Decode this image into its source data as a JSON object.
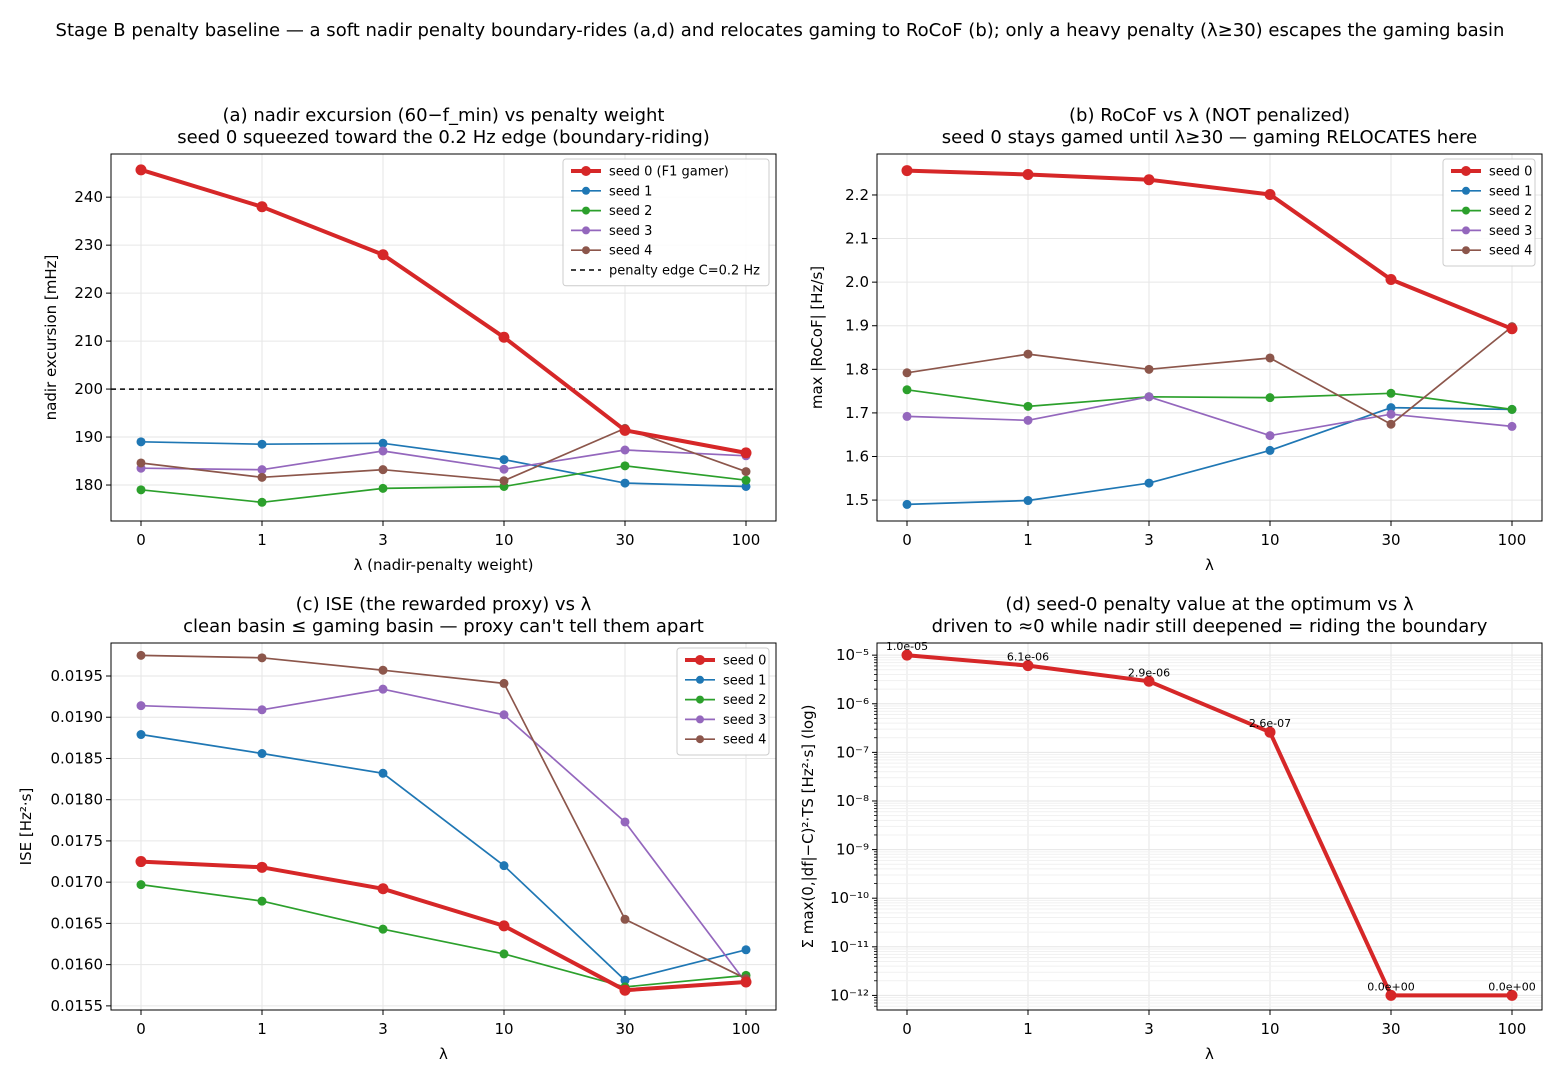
{
  "suptitle": "Stage B penalty baseline — a soft nadir penalty boundary-rides (a,d) and relocates gaming to RoCoF (b); only a heavy penalty (λ≥30) escapes the gaming basin",
  "colors": {
    "seed0": "#d62728",
    "seed1": "#1f77b4",
    "seed2": "#2ca02c",
    "seed3": "#9467bd",
    "seed4": "#8c564b",
    "grid": "#e6e6e6",
    "axis": "#000000"
  },
  "chart_data": [
    {
      "id": "a",
      "type": "line",
      "title": "(a) nadir excursion (60−f_min) vs penalty weight",
      "subtitle": "seed 0 squeezed toward the 0.2 Hz edge (boundary-riding)",
      "xlabel": "λ (nadir-penalty weight)",
      "ylabel": "nadir excursion [mHz]",
      "categories": [
        "0",
        "1",
        "3",
        "10",
        "30",
        "100"
      ],
      "yscale": "linear",
      "ylim": [
        172.5,
        249
      ],
      "yticks": [
        180,
        190,
        200,
        210,
        220,
        230,
        240
      ],
      "yticklabels": [
        "180",
        "190",
        "200",
        "210",
        "220",
        "230",
        "240"
      ],
      "grid": true,
      "legend_position": "upper right",
      "series": [
        {
          "name": "seed 0 (F1 gamer)",
          "color": "#d62728",
          "bold": true,
          "values": [
            245.7,
            238.0,
            228.0,
            210.8,
            191.4,
            186.7
          ]
        },
        {
          "name": "seed 1",
          "color": "#1f77b4",
          "bold": false,
          "values": [
            189.0,
            188.5,
            188.7,
            185.3,
            180.4,
            179.7
          ]
        },
        {
          "name": "seed 2",
          "color": "#2ca02c",
          "bold": false,
          "values": [
            179.0,
            176.4,
            179.3,
            179.7,
            184.0,
            181.0
          ]
        },
        {
          "name": "seed 3",
          "color": "#9467bd",
          "bold": false,
          "values": [
            183.5,
            183.2,
            187.1,
            183.3,
            187.3,
            186.1
          ]
        },
        {
          "name": "seed 4",
          "color": "#8c564b",
          "bold": false,
          "values": [
            184.6,
            181.6,
            183.2,
            180.9,
            191.8,
            182.8
          ]
        }
      ],
      "reference_line": {
        "name": "penalty edge C=0.2 Hz",
        "value": 200,
        "color": "#000000"
      }
    },
    {
      "id": "b",
      "type": "line",
      "title": "(b) RoCoF vs λ  (NOT penalized)",
      "subtitle": "seed 0 stays gamed until λ≥30 — gaming RELOCATES here",
      "xlabel": "λ",
      "ylabel": "max |RoCoF| [Hz/s]",
      "categories": [
        "0",
        "1",
        "3",
        "10",
        "30",
        "100"
      ],
      "yscale": "linear",
      "ylim": [
        1.452,
        2.294
      ],
      "yticks": [
        1.5,
        1.6,
        1.7,
        1.8,
        1.9,
        2.0,
        2.1,
        2.2
      ],
      "yticklabels": [
        "1.5",
        "1.6",
        "1.7",
        "1.8",
        "1.9",
        "2.0",
        "2.1",
        "2.2"
      ],
      "grid": true,
      "legend_position": "upper right",
      "series": [
        {
          "name": "seed 0",
          "color": "#d62728",
          "bold": true,
          "values": [
            2.256,
            2.247,
            2.235,
            2.201,
            2.006,
            1.893
          ]
        },
        {
          "name": "seed 1",
          "color": "#1f77b4",
          "bold": false,
          "values": [
            1.49,
            1.499,
            1.539,
            1.614,
            1.712,
            1.708
          ]
        },
        {
          "name": "seed 2",
          "color": "#2ca02c",
          "bold": false,
          "values": [
            1.753,
            1.715,
            1.737,
            1.735,
            1.745,
            1.708
          ]
        },
        {
          "name": "seed 3",
          "color": "#9467bd",
          "bold": false,
          "values": [
            1.692,
            1.683,
            1.737,
            1.648,
            1.697,
            1.669
          ]
        },
        {
          "name": "seed 4",
          "color": "#8c564b",
          "bold": false,
          "values": [
            1.792,
            1.835,
            1.8,
            1.826,
            1.674,
            1.898
          ]
        }
      ]
    },
    {
      "id": "c",
      "type": "line",
      "title": "(c) ISE (the rewarded proxy) vs λ",
      "subtitle": "clean basin ≤ gaming basin — proxy can't tell them apart",
      "xlabel": "λ",
      "ylabel": "ISE  [Hz²·s]",
      "categories": [
        "0",
        "1",
        "3",
        "10",
        "30",
        "100"
      ],
      "yscale": "linear",
      "ylim": [
        0.01545,
        0.0199
      ],
      "yticks": [
        0.0155,
        0.016,
        0.0165,
        0.017,
        0.0175,
        0.018,
        0.0185,
        0.019,
        0.0195
      ],
      "yticklabels": [
        "0.0155",
        "0.0160",
        "0.0165",
        "0.0170",
        "0.0175",
        "0.0180",
        "0.0185",
        "0.0190",
        "0.0195"
      ],
      "grid": true,
      "legend_position": "upper right",
      "series": [
        {
          "name": "seed 0",
          "color": "#d62728",
          "bold": true,
          "values": [
            0.01725,
            0.01718,
            0.01692,
            0.01647,
            0.01569,
            0.01579
          ]
        },
        {
          "name": "seed 1",
          "color": "#1f77b4",
          "bold": false,
          "values": [
            0.01879,
            0.01856,
            0.01832,
            0.0172,
            0.01581,
            0.01618
          ]
        },
        {
          "name": "seed 2",
          "color": "#2ca02c",
          "bold": false,
          "values": [
            0.01697,
            0.01677,
            0.01643,
            0.01613,
            0.01573,
            0.01587
          ]
        },
        {
          "name": "seed 3",
          "color": "#9467bd",
          "bold": false,
          "values": [
            0.01914,
            0.01909,
            0.01934,
            0.01903,
            0.01773,
            0.01578
          ]
        },
        {
          "name": "seed 4",
          "color": "#8c564b",
          "bold": false,
          "values": [
            0.01975,
            0.01972,
            0.01957,
            0.01941,
            0.01655,
            0.01583
          ]
        }
      ]
    },
    {
      "id": "d",
      "type": "line",
      "title": "(d) seed-0 penalty value at the optimum vs λ",
      "subtitle": "driven to ≈0 while nadir still deepened = riding the boundary",
      "xlabel": "λ",
      "ylabel": "Σ max(0,|df|−C)²·TS  [Hz²·s] (log)",
      "categories": [
        "0",
        "1",
        "3",
        "10",
        "30",
        "100"
      ],
      "yscale": "log",
      "ylim_log10": [
        -12.3,
        -4.75
      ],
      "yticks_log10": [
        -12,
        -11,
        -10,
        -9,
        -8,
        -7,
        -6,
        -5
      ],
      "yticklabels": [
        "10⁻¹²",
        "10⁻¹¹",
        "10⁻¹⁰",
        "10⁻⁹",
        "10⁻⁸",
        "10⁻⁷",
        "10⁻⁶",
        "10⁻⁵"
      ],
      "grid": true,
      "series": [
        {
          "name": "",
          "color": "#d62728",
          "bold": true,
          "values": [
            1e-05,
            6.1e-06,
            2.9e-06,
            2.6e-07,
            1e-12,
            1e-12
          ],
          "labels": [
            "1.0e-05",
            "6.1e-06",
            "2.9e-06",
            "2.6e-07",
            "0.0e+00",
            "0.0e+00"
          ]
        }
      ]
    }
  ]
}
